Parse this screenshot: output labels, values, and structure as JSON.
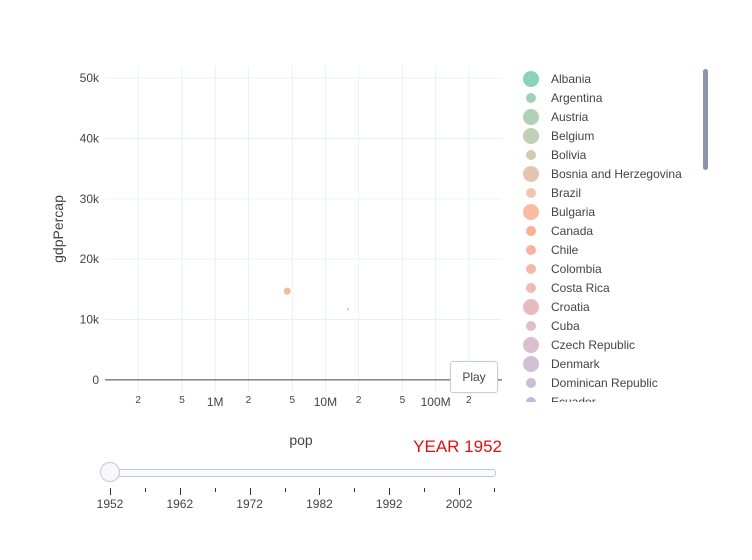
{
  "chart_data": {
    "type": "scatter",
    "title": "",
    "xlabel": "pop",
    "ylabel": "gdpPercap",
    "x_scale": "log",
    "xlim": [
      100000,
      400000000
    ],
    "ylim": [
      -2000,
      52000
    ],
    "x_ticks": [
      {
        "value": 200000,
        "label": "2",
        "major": false
      },
      {
        "value": 500000,
        "label": "5",
        "major": false
      },
      {
        "value": 1000000,
        "label": "1M",
        "major": true
      },
      {
        "value": 2000000,
        "label": "2",
        "major": false
      },
      {
        "value": 5000000,
        "label": "5",
        "major": false
      },
      {
        "value": 10000000,
        "label": "10M",
        "major": true
      },
      {
        "value": 20000000,
        "label": "2",
        "major": false
      },
      {
        "value": 50000000,
        "label": "5",
        "major": false
      },
      {
        "value": 100000000,
        "label": "100M",
        "major": true
      },
      {
        "value": 200000000,
        "label": "2",
        "major": false
      }
    ],
    "y_ticks": [
      {
        "value": 0,
        "label": "0"
      },
      {
        "value": 10000,
        "label": "10k"
      },
      {
        "value": 20000,
        "label": "20k"
      },
      {
        "value": 30000,
        "label": "30k"
      },
      {
        "value": 40000,
        "label": "40k"
      },
      {
        "value": 50000,
        "label": "50k"
      }
    ],
    "grid": true,
    "legend_position": "right",
    "legend": [
      {
        "name": "Albania",
        "color": "#66c2a5",
        "size": 8
      },
      {
        "name": "Argentina",
        "color": "#7fc2a3",
        "size": 5
      },
      {
        "name": "Austria",
        "color": "#96c0a0",
        "size": 8
      },
      {
        "name": "Belgium",
        "color": "#acbf9c",
        "size": 8
      },
      {
        "name": "Bolivia",
        "color": "#c4b996",
        "size": 5
      },
      {
        "name": "Bosnia and Herzegovina",
        "color": "#dcb292",
        "size": 8
      },
      {
        "name": "Brazil",
        "color": "#f0b08e",
        "size": 5
      },
      {
        "name": "Bulgaria",
        "color": "#f5a683",
        "size": 8
      },
      {
        "name": "Canada",
        "color": "#fa9570",
        "size": 5
      },
      {
        "name": "Chile",
        "color": "#f89980",
        "size": 5
      },
      {
        "name": "Colombia",
        "color": "#f0a08e",
        "size": 5
      },
      {
        "name": "Costa Rica",
        "color": "#e9a49a",
        "size": 5
      },
      {
        "name": "Croatia",
        "color": "#dea4aa",
        "size": 8
      },
      {
        "name": "Cuba",
        "color": "#d4a9b2",
        "size": 5
      },
      {
        "name": "Czech Republic",
        "color": "#ccaac0",
        "size": 8
      },
      {
        "name": "Denmark",
        "color": "#c4a9c4",
        "size": 8
      },
      {
        "name": "Dominican Republic",
        "color": "#b8a8ca",
        "size": 5
      },
      {
        "name": "Ecuador",
        "color": "#ae9fd0",
        "size": 5
      }
    ],
    "points": [
      {
        "x": 4500000,
        "y": 14700,
        "color": "#f0b08e",
        "size": 3.5
      },
      {
        "x": 16000000,
        "y": 11700,
        "color": "#fa9570",
        "size": 1
      }
    ],
    "year": "YEAR 1952",
    "slider": {
      "steps": [
        "1952",
        "1962",
        "1972",
        "1982",
        "1992",
        "2002"
      ],
      "range": [
        1952,
        2007
      ],
      "current": 1952
    },
    "play_label": "Play"
  }
}
